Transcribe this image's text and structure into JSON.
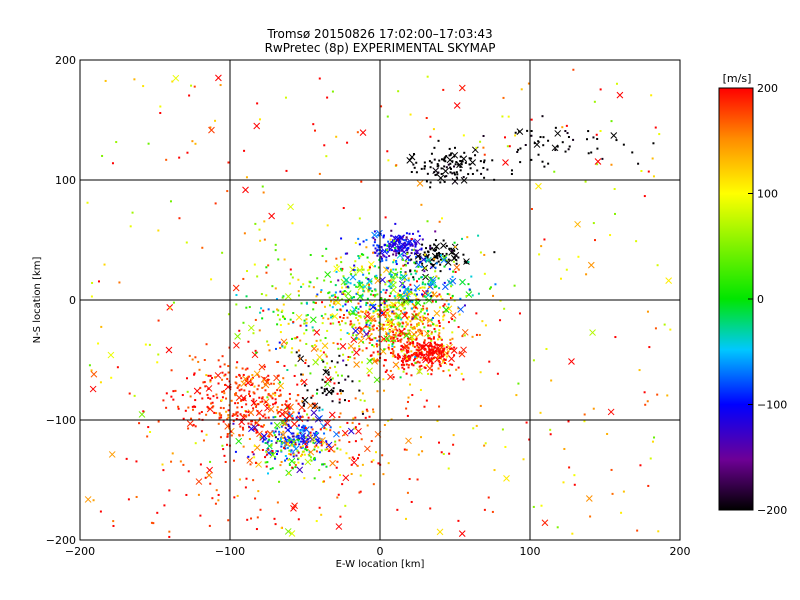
{
  "chart_data": {
    "type": "scatter",
    "title": "Tromsø 20150826 17:02:00–17:03:43",
    "subtitle": "RwPretec (8p) EXPERIMENTAL SKYMAP",
    "xlabel": "E-W location [km]",
    "ylabel": "N-S location [km]",
    "xlim": [
      -200,
      200
    ],
    "ylim": [
      -200,
      200
    ],
    "x_ticks": [
      -200,
      -100,
      0,
      100,
      200
    ],
    "y_ticks": [
      -200,
      -100,
      0,
      100,
      200
    ],
    "grid": true,
    "colorbar": {
      "label": "[m/s]",
      "range": [
        -200,
        200
      ],
      "ticks": [
        -200,
        -100,
        0,
        100,
        200
      ]
    },
    "marker_types": [
      "dot",
      "x"
    ],
    "clusters": [
      {
        "x": -90,
        "y": -85,
        "sx": 22,
        "sy": 20,
        "n": 340,
        "v": 185,
        "vs": 25
      },
      {
        "x": -60,
        "y": -115,
        "sx": 12,
        "sy": 10,
        "n": 170,
        "v": -95,
        "vs": 30
      },
      {
        "x": -55,
        "y": -125,
        "sx": 15,
        "sy": 14,
        "n": 90,
        "v": 40,
        "vs": 60
      },
      {
        "x": 12,
        "y": 45,
        "sx": 10,
        "sy": 7,
        "n": 170,
        "v": -110,
        "vs": 25
      },
      {
        "x": 38,
        "y": 35,
        "sx": 10,
        "sy": 6,
        "n": 90,
        "v": -205,
        "vs": 8
      },
      {
        "x": 45,
        "y": 112,
        "sx": 13,
        "sy": 7,
        "n": 110,
        "v": -205,
        "vs": 8
      },
      {
        "x": 125,
        "y": 130,
        "sx": 28,
        "sy": 10,
        "n": 55,
        "v": -205,
        "vs": 8
      },
      {
        "x": 15,
        "y": -25,
        "sx": 20,
        "sy": 16,
        "n": 430,
        "v": 160,
        "vs": 55
      },
      {
        "x": 30,
        "y": -45,
        "sx": 10,
        "sy": 7,
        "n": 200,
        "v": 200,
        "vs": 10
      },
      {
        "x": -20,
        "y": -10,
        "sx": 35,
        "sy": 25,
        "n": 380,
        "v": 60,
        "vs": 80
      },
      {
        "x": 15,
        "y": 10,
        "sx": 25,
        "sy": 15,
        "n": 260,
        "v": -20,
        "vs": 60
      },
      {
        "x": -30,
        "y": -110,
        "sx": 28,
        "sy": 25,
        "n": 120,
        "v": 180,
        "vs": 35
      },
      {
        "x": -40,
        "y": -70,
        "sx": 12,
        "sy": 12,
        "n": 50,
        "v": -205,
        "vs": 8
      },
      {
        "x": -100,
        "y": -140,
        "sx": 40,
        "sy": 35,
        "n": 80,
        "v": 190,
        "vs": 30
      }
    ],
    "background_scatter": {
      "n": 380,
      "v_mean": 150,
      "v_spread": 110
    },
    "x_fraction": 0.12
  }
}
